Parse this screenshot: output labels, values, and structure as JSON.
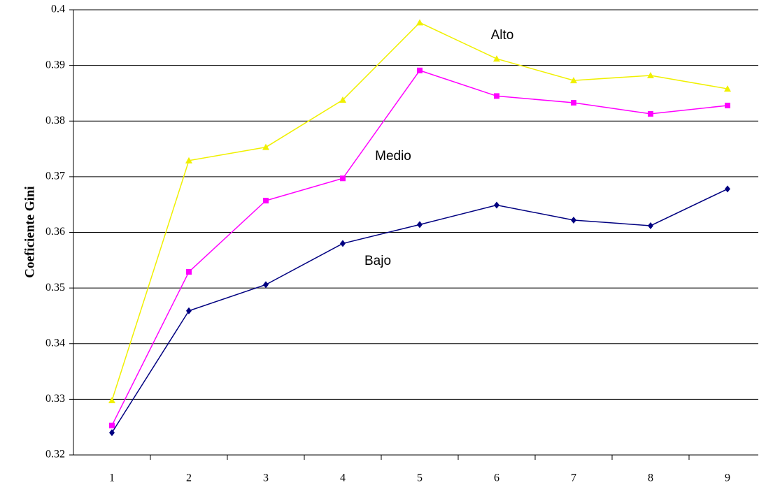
{
  "chart_data": {
    "type": "line",
    "y_label": "Coeficiente Gini",
    "categories": [
      "1",
      "2",
      "3",
      "4",
      "5",
      "6",
      "7",
      "8",
      "9"
    ],
    "series": [
      {
        "name": "Alto",
        "color": "#f0f000",
        "marker": "triangle",
        "values": [
          0.3298,
          0.3729,
          0.3753,
          0.3838,
          0.3977,
          0.3912,
          0.3873,
          0.3882,
          0.3858
        ]
      },
      {
        "name": "Medio",
        "color": "#ff00ff",
        "marker": "square",
        "values": [
          0.3253,
          0.3529,
          0.3657,
          0.3697,
          0.3891,
          0.3845,
          0.3833,
          0.3813,
          0.3828
        ]
      },
      {
        "name": "Bajo",
        "color": "#000080",
        "marker": "diamond",
        "values": [
          0.324,
          0.3459,
          0.3506,
          0.358,
          0.3614,
          0.3649,
          0.3622,
          0.3612,
          0.3678
        ]
      }
    ],
    "ylim": [
      0.32,
      0.4
    ],
    "yticks": [
      0.32,
      0.33,
      0.34,
      0.35,
      0.36,
      0.37,
      0.38,
      0.39,
      0.4
    ],
    "grid": true
  }
}
